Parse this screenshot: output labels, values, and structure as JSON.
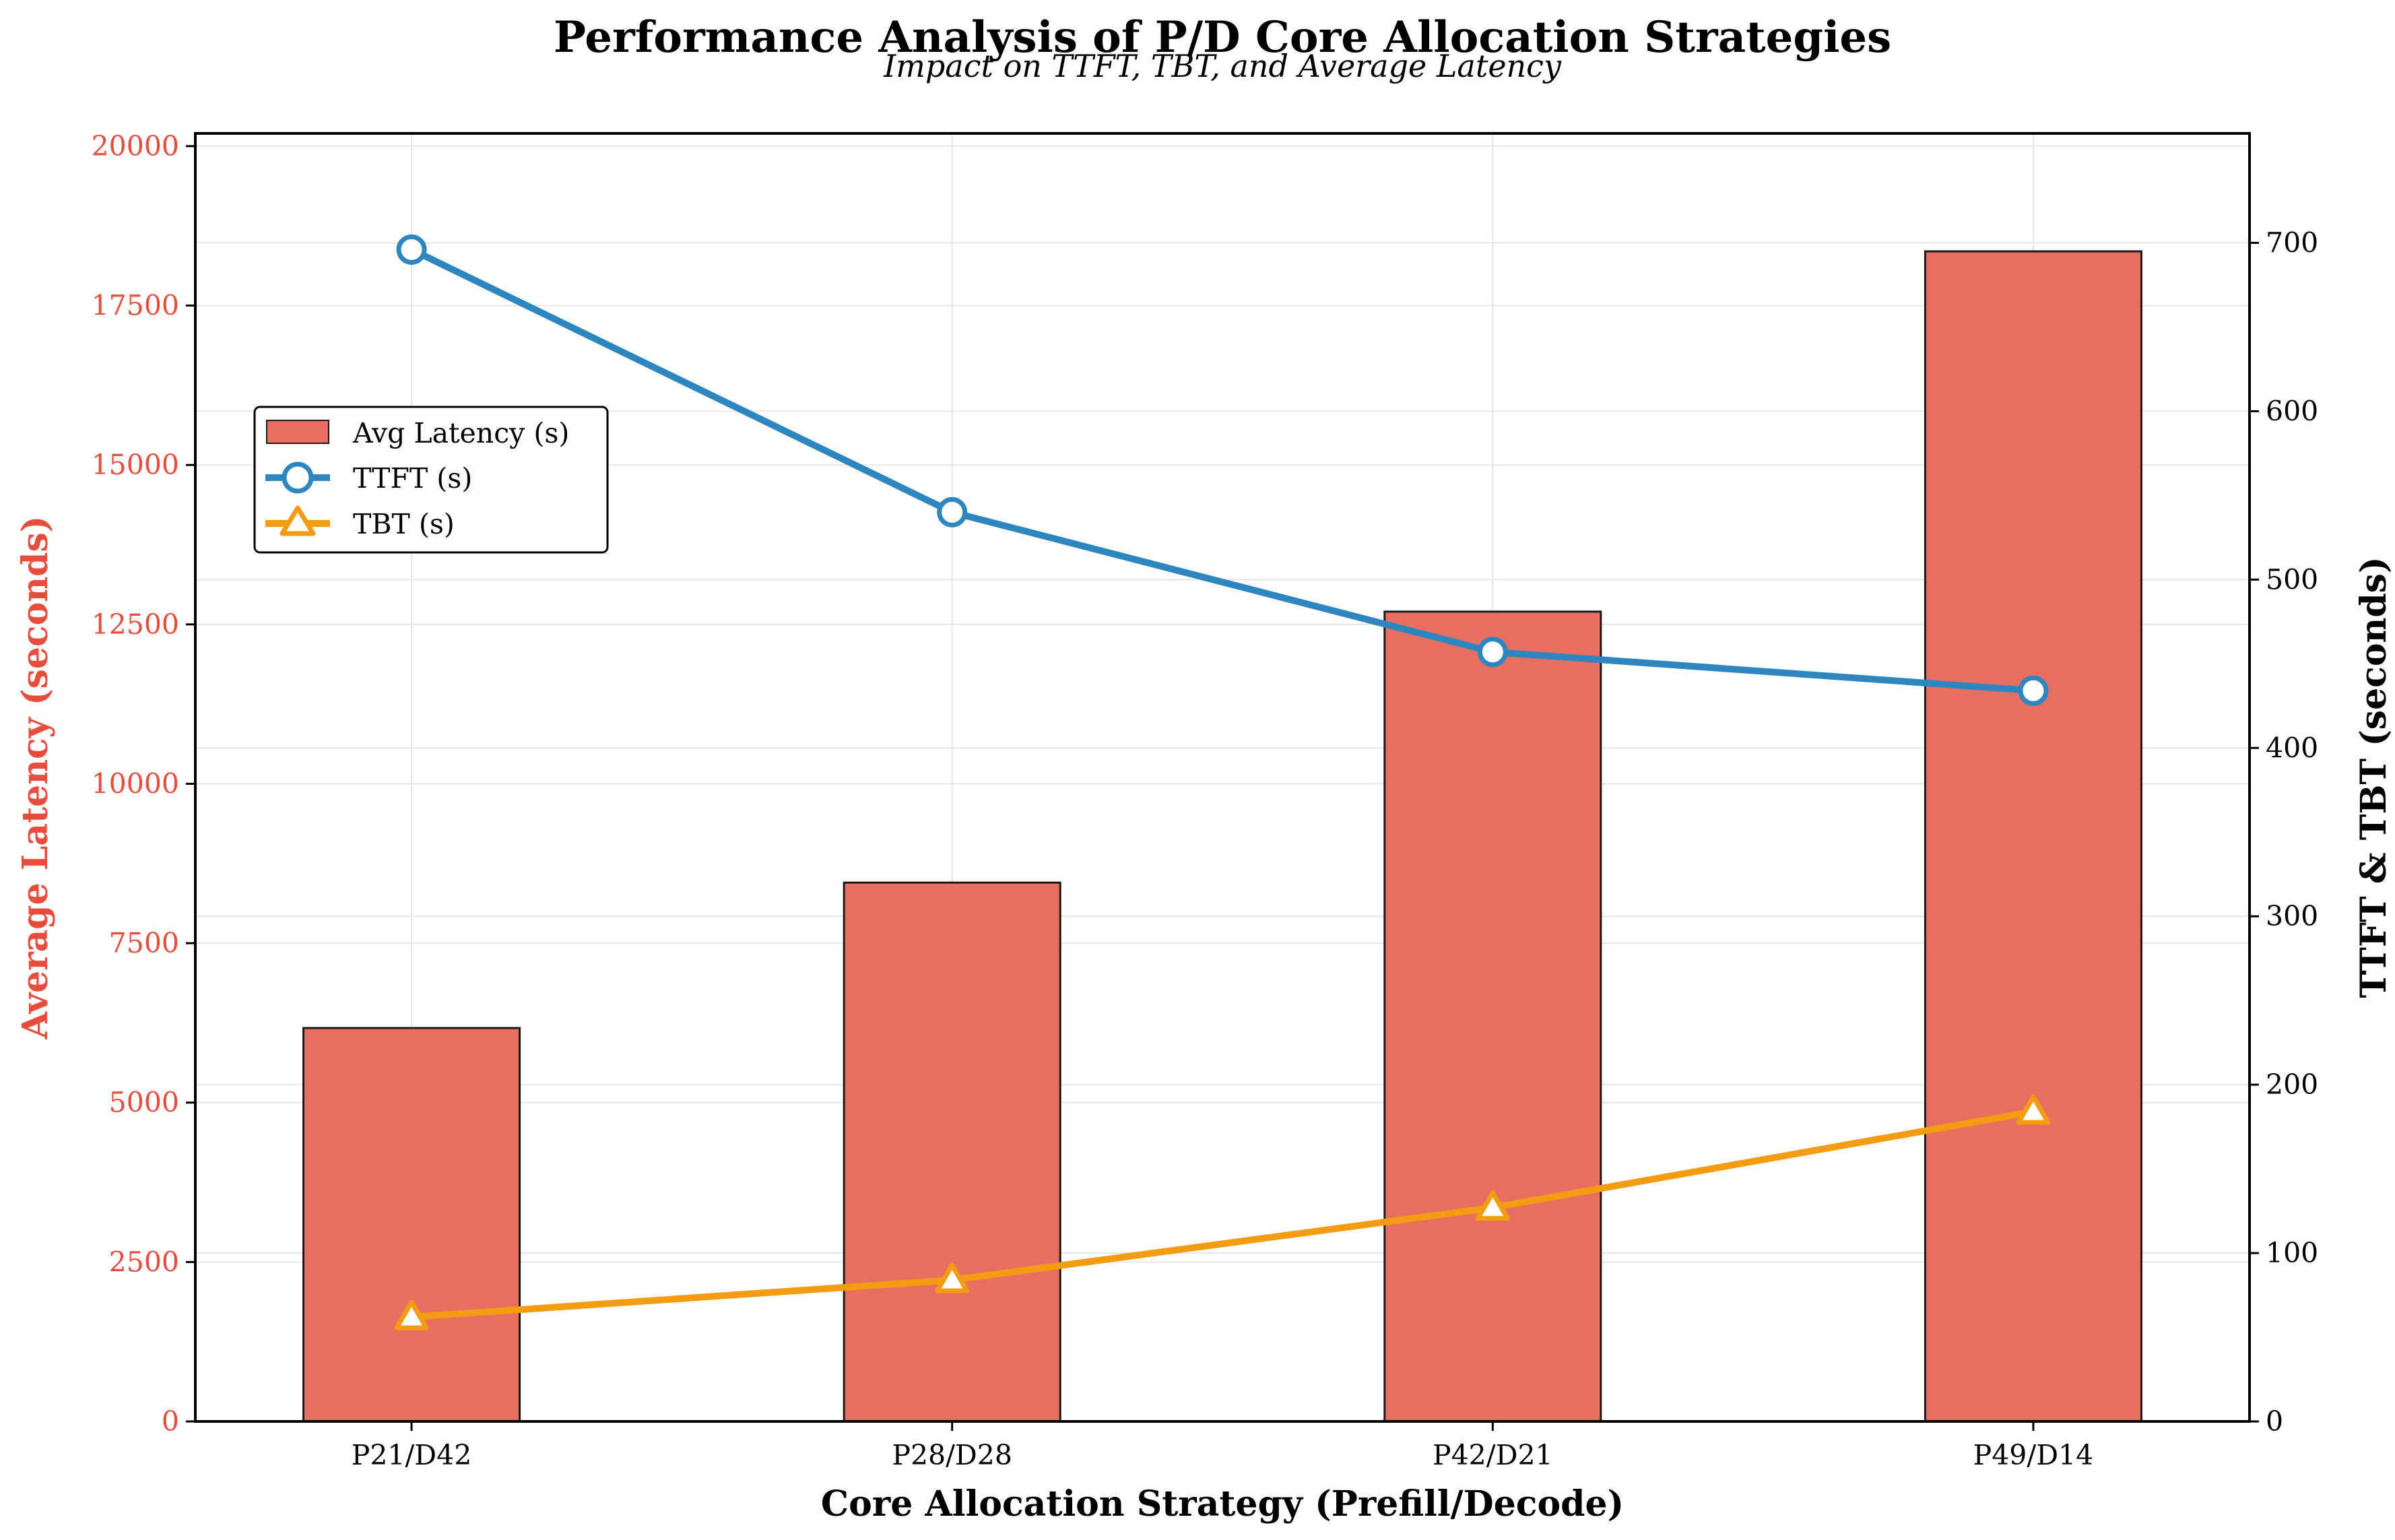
{
  "colors": {
    "bar": "#e76f61",
    "bar_edge": "#1a1a1a",
    "ttft": "#2e86c1",
    "tbt": "#f39c12",
    "left_axis": "#e74c3c",
    "grid": "#e6e6e6"
  },
  "chart_data": {
    "type": "bar",
    "title": "Performance Analysis of P/D Core Allocation Strategies",
    "subtitle": "Impact on TTFT, TBT, and Average Latency",
    "xlabel": "Core Allocation Strategy (Prefill/Decode)",
    "ylabel": "Average Latency (seconds)",
    "ylabel_right": "TTFT & TBT (seconds)",
    "categories": [
      "P21/D42",
      "P28/D28",
      "P42/D21",
      "P49/D14"
    ],
    "ylim": [
      0,
      20200
    ],
    "ylim_right": [
      0,
      765
    ],
    "yticks": [
      0,
      2500,
      5000,
      7500,
      10000,
      12500,
      15000,
      17500,
      20000
    ],
    "yticks_right": [
      0,
      100,
      200,
      300,
      400,
      500,
      600,
      700
    ],
    "grid": true,
    "legend_position": "upper-left",
    "series": [
      {
        "name": "Avg Latency (s)",
        "type": "bar",
        "axis": "left",
        "values": [
          6170,
          8450,
          12700,
          18350
        ]
      },
      {
        "name": "TTFT (s)",
        "type": "line",
        "axis": "right",
        "marker": "circle",
        "values": [
          696,
          540,
          457,
          434
        ]
      },
      {
        "name": "TBT (s)",
        "type": "line",
        "axis": "right",
        "marker": "triangle",
        "values": [
          62,
          84,
          127,
          184
        ]
      }
    ]
  }
}
